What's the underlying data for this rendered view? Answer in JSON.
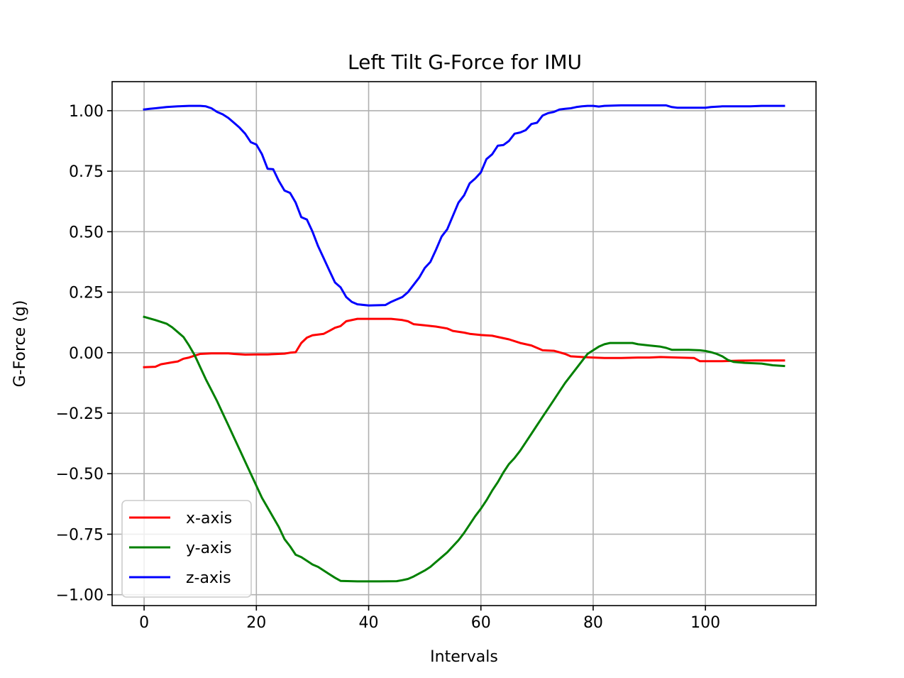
{
  "chart_data": {
    "type": "line",
    "title": "Left Tilt G-Force for IMU",
    "xlabel": "Intervals",
    "ylabel": "G-Force (g)",
    "xlim": [
      -5.7,
      119.7
    ],
    "ylim": [
      -1.045,
      1.12
    ],
    "xticks": [
      0,
      20,
      40,
      60,
      80,
      100
    ],
    "xtick_labels": [
      "0",
      "20",
      "40",
      "60",
      "80",
      "100"
    ],
    "yticks": [
      1.0,
      0.75,
      0.5,
      0.25,
      0.0,
      -0.25,
      -0.5,
      -0.75,
      -1.0
    ],
    "ytick_labels": [
      "1.00",
      "0.75",
      "0.50",
      "0.25",
      "0.00",
      "−0.25",
      "−0.50",
      "−0.75",
      "−1.00"
    ],
    "grid": true,
    "legend_position": "lower-left",
    "series": [
      {
        "name": "x-axis",
        "color": "#ff0000",
        "points": [
          [
            0,
            -0.06
          ],
          [
            2,
            -0.058
          ],
          [
            3,
            -0.048
          ],
          [
            5,
            -0.04
          ],
          [
            6,
            -0.036
          ],
          [
            7,
            -0.025
          ],
          [
            8,
            -0.02
          ],
          [
            9,
            -0.012
          ],
          [
            10,
            -0.005
          ],
          [
            12,
            -0.003
          ],
          [
            15,
            -0.003
          ],
          [
            16,
            -0.005
          ],
          [
            18,
            -0.008
          ],
          [
            20,
            -0.007
          ],
          [
            22,
            -0.007
          ],
          [
            25,
            -0.004
          ],
          [
            26,
            0.0
          ],
          [
            27,
            0.002
          ],
          [
            28,
            0.04
          ],
          [
            29,
            0.062
          ],
          [
            30,
            0.072
          ],
          [
            32,
            0.078
          ],
          [
            33,
            0.09
          ],
          [
            34,
            0.103
          ],
          [
            35,
            0.11
          ],
          [
            36,
            0.13
          ],
          [
            38,
            0.14
          ],
          [
            44,
            0.14
          ],
          [
            46,
            0.135
          ],
          [
            47,
            0.13
          ],
          [
            48,
            0.118
          ],
          [
            50,
            0.113
          ],
          [
            52,
            0.108
          ],
          [
            54,
            0.1
          ],
          [
            55,
            0.09
          ],
          [
            57,
            0.083
          ],
          [
            58,
            0.078
          ],
          [
            60,
            0.073
          ],
          [
            62,
            0.07
          ],
          [
            63,
            0.065
          ],
          [
            65,
            0.055
          ],
          [
            67,
            0.04
          ],
          [
            69,
            0.03
          ],
          [
            70,
            0.02
          ],
          [
            71,
            0.01
          ],
          [
            73,
            0.008
          ],
          [
            75,
            -0.005
          ],
          [
            76,
            -0.015
          ],
          [
            78,
            -0.018
          ],
          [
            80,
            -0.02
          ],
          [
            82,
            -0.022
          ],
          [
            85,
            -0.022
          ],
          [
            88,
            -0.02
          ],
          [
            90,
            -0.02
          ],
          [
            92,
            -0.018
          ],
          [
            95,
            -0.02
          ],
          [
            98,
            -0.022
          ],
          [
            99,
            -0.035
          ],
          [
            103,
            -0.035
          ],
          [
            106,
            -0.033
          ],
          [
            109,
            -0.032
          ],
          [
            114,
            -0.032
          ]
        ]
      },
      {
        "name": "y-axis",
        "color": "#008000",
        "points": [
          [
            0,
            0.148
          ],
          [
            2,
            0.135
          ],
          [
            4,
            0.12
          ],
          [
            5,
            0.105
          ],
          [
            6,
            0.085
          ],
          [
            7,
            0.065
          ],
          [
            8,
            0.03
          ],
          [
            9,
            -0.01
          ],
          [
            10,
            -0.06
          ],
          [
            11,
            -0.11
          ],
          [
            12,
            -0.155
          ],
          [
            13,
            -0.2
          ],
          [
            14,
            -0.25
          ],
          [
            15,
            -0.3
          ],
          [
            16,
            -0.35
          ],
          [
            17,
            -0.4
          ],
          [
            18,
            -0.45
          ],
          [
            19,
            -0.5
          ],
          [
            20,
            -0.55
          ],
          [
            21,
            -0.6
          ],
          [
            22,
            -0.64
          ],
          [
            23,
            -0.68
          ],
          [
            24,
            -0.72
          ],
          [
            25,
            -0.77
          ],
          [
            26,
            -0.8
          ],
          [
            27,
            -0.835
          ],
          [
            28,
            -0.845
          ],
          [
            29,
            -0.86
          ],
          [
            30,
            -0.875
          ],
          [
            31,
            -0.885
          ],
          [
            32,
            -0.9
          ],
          [
            33,
            -0.915
          ],
          [
            34,
            -0.93
          ],
          [
            35,
            -0.943
          ],
          [
            38,
            -0.945
          ],
          [
            42,
            -0.945
          ],
          [
            45,
            -0.944
          ],
          [
            46,
            -0.94
          ],
          [
            47,
            -0.935
          ],
          [
            48,
            -0.925
          ],
          [
            50,
            -0.9
          ],
          [
            51,
            -0.885
          ],
          [
            52,
            -0.865
          ],
          [
            53,
            -0.845
          ],
          [
            54,
            -0.825
          ],
          [
            55,
            -0.8
          ],
          [
            56,
            -0.775
          ],
          [
            57,
            -0.745
          ],
          [
            58,
            -0.71
          ],
          [
            59,
            -0.675
          ],
          [
            60,
            -0.645
          ],
          [
            61,
            -0.61
          ],
          [
            62,
            -0.57
          ],
          [
            63,
            -0.535
          ],
          [
            64,
            -0.495
          ],
          [
            65,
            -0.46
          ],
          [
            66,
            -0.435
          ],
          [
            67,
            -0.405
          ],
          [
            68,
            -0.37
          ],
          [
            69,
            -0.335
          ],
          [
            70,
            -0.3
          ],
          [
            71,
            -0.265
          ],
          [
            72,
            -0.23
          ],
          [
            73,
            -0.195
          ],
          [
            74,
            -0.16
          ],
          [
            75,
            -0.125
          ],
          [
            76,
            -0.095
          ],
          [
            77,
            -0.065
          ],
          [
            78,
            -0.035
          ],
          [
            79,
            -0.005
          ],
          [
            80,
            0.01
          ],
          [
            81,
            0.025
          ],
          [
            82,
            0.035
          ],
          [
            83,
            0.04
          ],
          [
            87,
            0.04
          ],
          [
            88,
            0.035
          ],
          [
            90,
            0.03
          ],
          [
            92,
            0.025
          ],
          [
            93,
            0.02
          ],
          [
            94,
            0.012
          ],
          [
            97,
            0.012
          ],
          [
            99,
            0.01
          ],
          [
            100,
            0.007
          ],
          [
            101,
            0.002
          ],
          [
            102,
            -0.005
          ],
          [
            103,
            -0.015
          ],
          [
            104,
            -0.03
          ],
          [
            105,
            -0.038
          ],
          [
            107,
            -0.042
          ],
          [
            110,
            -0.045
          ],
          [
            112,
            -0.052
          ],
          [
            114,
            -0.055
          ]
        ]
      },
      {
        "name": "z-axis",
        "color": "#0000ff",
        "points": [
          [
            0,
            1.005
          ],
          [
            1,
            1.008
          ],
          [
            2,
            1.01
          ],
          [
            4,
            1.015
          ],
          [
            6,
            1.018
          ],
          [
            8,
            1.02
          ],
          [
            10,
            1.02
          ],
          [
            11,
            1.018
          ],
          [
            12,
            1.01
          ],
          [
            13,
            0.995
          ],
          [
            14,
            0.985
          ],
          [
            15,
            0.97
          ],
          [
            16,
            0.95
          ],
          [
            17,
            0.93
          ],
          [
            18,
            0.905
          ],
          [
            19,
            0.87
          ],
          [
            20,
            0.86
          ],
          [
            21,
            0.82
          ],
          [
            22,
            0.76
          ],
          [
            23,
            0.758
          ],
          [
            24,
            0.71
          ],
          [
            25,
            0.67
          ],
          [
            26,
            0.66
          ],
          [
            27,
            0.62
          ],
          [
            28,
            0.56
          ],
          [
            29,
            0.55
          ],
          [
            30,
            0.5
          ],
          [
            31,
            0.44
          ],
          [
            32,
            0.39
          ],
          [
            33,
            0.34
          ],
          [
            34,
            0.29
          ],
          [
            35,
            0.27
          ],
          [
            36,
            0.23
          ],
          [
            37,
            0.21
          ],
          [
            38,
            0.2
          ],
          [
            40,
            0.195
          ],
          [
            43,
            0.197
          ],
          [
            44,
            0.21
          ],
          [
            45,
            0.22
          ],
          [
            46,
            0.23
          ],
          [
            47,
            0.25
          ],
          [
            48,
            0.28
          ],
          [
            49,
            0.31
          ],
          [
            50,
            0.35
          ],
          [
            51,
            0.375
          ],
          [
            52,
            0.425
          ],
          [
            53,
            0.48
          ],
          [
            54,
            0.51
          ],
          [
            55,
            0.565
          ],
          [
            56,
            0.62
          ],
          [
            57,
            0.65
          ],
          [
            58,
            0.7
          ],
          [
            59,
            0.72
          ],
          [
            60,
            0.745
          ],
          [
            61,
            0.8
          ],
          [
            62,
            0.82
          ],
          [
            63,
            0.855
          ],
          [
            64,
            0.858
          ],
          [
            65,
            0.875
          ],
          [
            66,
            0.905
          ],
          [
            67,
            0.91
          ],
          [
            68,
            0.92
          ],
          [
            69,
            0.945
          ],
          [
            70,
            0.95
          ],
          [
            71,
            0.98
          ],
          [
            72,
            0.99
          ],
          [
            73,
            0.995
          ],
          [
            74,
            1.005
          ],
          [
            75,
            1.008
          ],
          [
            76,
            1.01
          ],
          [
            77,
            1.015
          ],
          [
            78,
            1.018
          ],
          [
            79,
            1.02
          ],
          [
            80,
            1.02
          ],
          [
            81,
            1.017
          ],
          [
            82,
            1.02
          ],
          [
            85,
            1.022
          ],
          [
            90,
            1.022
          ],
          [
            93,
            1.022
          ],
          [
            94,
            1.015
          ],
          [
            95,
            1.012
          ],
          [
            97,
            1.012
          ],
          [
            100,
            1.012
          ],
          [
            101,
            1.015
          ],
          [
            103,
            1.018
          ],
          [
            108,
            1.018
          ],
          [
            110,
            1.02
          ],
          [
            114,
            1.02
          ]
        ]
      }
    ]
  }
}
